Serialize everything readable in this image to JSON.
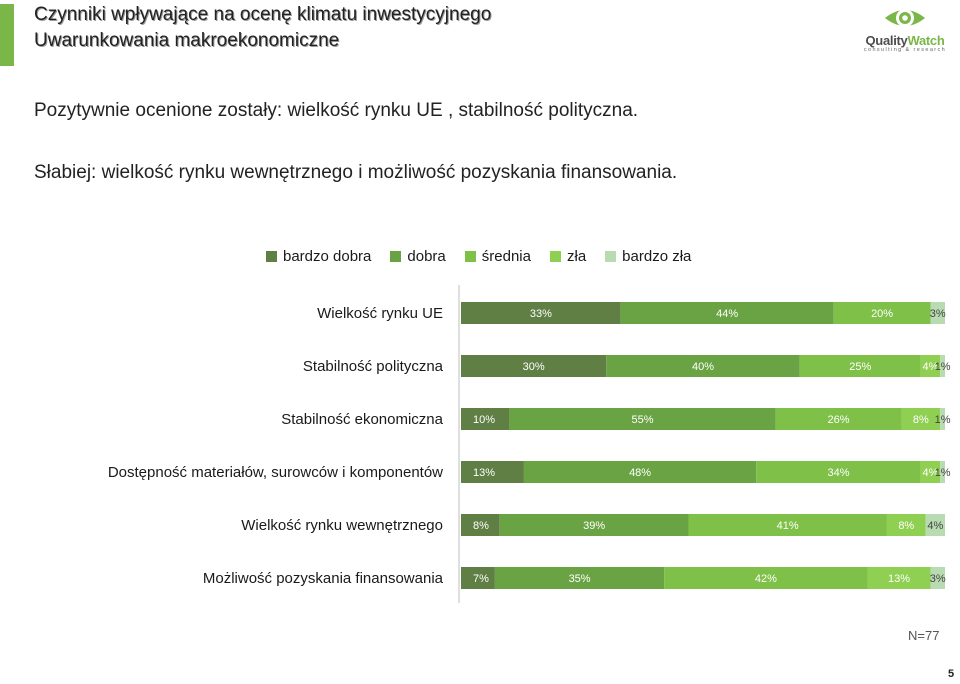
{
  "header": {
    "title": "Czynniki wpływające na ocenę klimatu inwestycyjnego",
    "subtitle": "Uwarunkowania makroekonomiczne"
  },
  "logo": {
    "name_part1": "Quality",
    "name_part2": "Watch",
    "tagline": "consulting & research"
  },
  "intro": {
    "line1": "Pozytywnie ocenione zostały: wielkość rynku UE , stabilność polityczna.",
    "line2": "Słabiej:  wielkość rynku wewnętrznego i możliwość pozyskania finansowania."
  },
  "colors": {
    "accent": "#7ab648",
    "series": [
      "#5f7f45",
      "#6aa343",
      "#7fc048",
      "#8fcf52",
      "#b9dbb1"
    ],
    "label_dark": "#ffffff"
  },
  "chart_data": {
    "type": "bar",
    "orientation": "horizontal",
    "stacked": true,
    "unit": "%",
    "categories": [
      "Wielkość rynku UE",
      "Stabilność polityczna",
      "Stabilność ekonomiczna",
      "Dostępność materiałów, surowców i komponentów",
      "Wielkość rynku wewnętrznego",
      "Możliwość pozyskania finansowania"
    ],
    "series": [
      {
        "name": "bardzo dobra",
        "values": [
          33,
          30,
          10,
          13,
          8,
          7
        ]
      },
      {
        "name": "dobra",
        "values": [
          44,
          40,
          55,
          48,
          39,
          35
        ]
      },
      {
        "name": "średnia",
        "values": [
          20,
          25,
          26,
          34,
          41,
          42
        ]
      },
      {
        "name": "zła",
        "values": [
          0,
          4,
          8,
          4,
          8,
          13
        ]
      },
      {
        "name": "bardzo zła",
        "values": [
          3,
          1,
          1,
          1,
          4,
          3
        ]
      }
    ],
    "legend_position": "top",
    "grid": false
  },
  "footer": {
    "sample_size": "N=77",
    "page_number": "5"
  }
}
